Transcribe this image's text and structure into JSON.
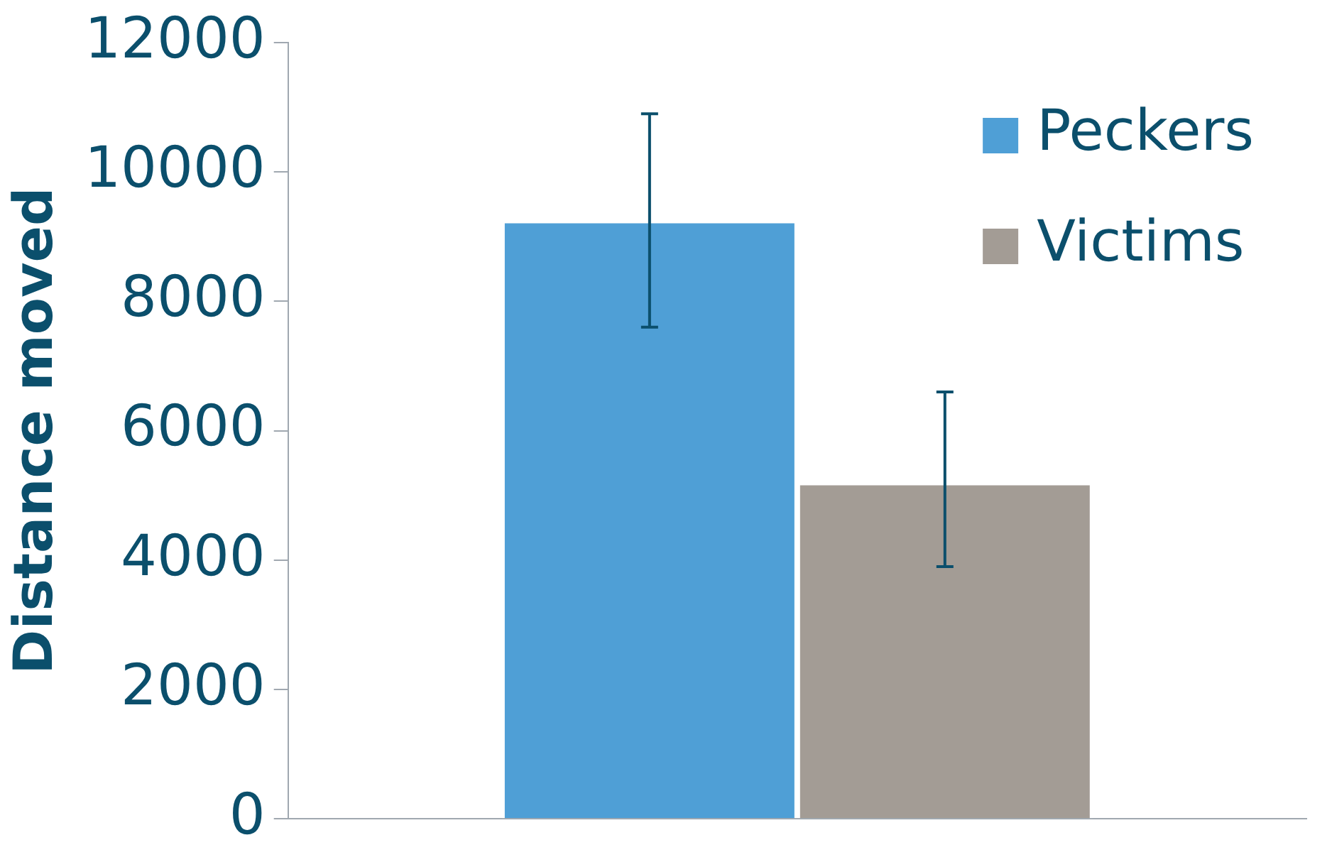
{
  "chart_data": {
    "type": "bar",
    "ylabel": "Distance moved",
    "categories": [
      null
    ],
    "series": [
      {
        "name": "Peckers",
        "color": "#4f9fd6",
        "values": [
          9250
        ],
        "errors": [
          [
            7600,
            10900
          ]
        ]
      },
      {
        "name": "Victims",
        "color": "#a39c95",
        "values": [
          5200
        ],
        "errors": [
          [
            3900,
            6600
          ]
        ]
      }
    ],
    "ylim": [
      0,
      12000
    ],
    "yticks": [
      0,
      2000,
      4000,
      6000,
      8000,
      10000,
      12000
    ],
    "grid": false,
    "legend": "top right"
  }
}
